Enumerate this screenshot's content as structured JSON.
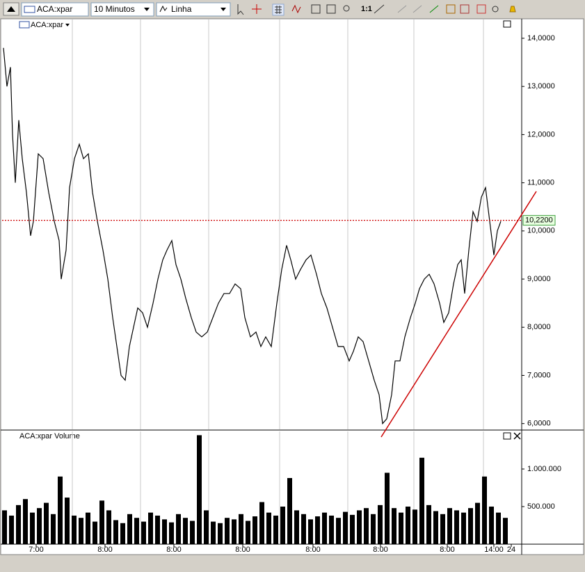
{
  "toolbar": {
    "symbol": "ACA:xpar",
    "interval": "10 Minutos",
    "style": "Linha"
  },
  "chart_data": [
    {
      "type": "line",
      "title": "ACA:xpar",
      "color": "#000000",
      "x": [
        2,
        7,
        12,
        15,
        19,
        24,
        29,
        35,
        41,
        45,
        52,
        59,
        67,
        75,
        82,
        85,
        92,
        97,
        104,
        111,
        117,
        124,
        130,
        137,
        145,
        152,
        159,
        165,
        171,
        177,
        183,
        189,
        195,
        202,
        209,
        217,
        224,
        231,
        237,
        244,
        250,
        257,
        264,
        272,
        279,
        287,
        295,
        303,
        311,
        319,
        327,
        335,
        343,
        349,
        357,
        365,
        372,
        379,
        387,
        395,
        402,
        409,
        415,
        422,
        429,
        437,
        444,
        452,
        459,
        467,
        475,
        483,
        491,
        499,
        505,
        512,
        519,
        527,
        535,
        542,
        547,
        553,
        560,
        565,
        572,
        579,
        587,
        594,
        600,
        607,
        614,
        621,
        629,
        635,
        642,
        649,
        655,
        660,
        665,
        671,
        677,
        683,
        689,
        695,
        701,
        707,
        712,
        717
      ],
      "values": [
        13.8,
        13.0,
        13.4,
        12.0,
        11.0,
        12.3,
        11.5,
        10.8,
        9.9,
        10.2,
        11.6,
        11.5,
        10.8,
        10.2,
        9.8,
        9.0,
        9.6,
        10.9,
        11.5,
        11.8,
        11.5,
        11.6,
        10.8,
        10.2,
        9.6,
        9.0,
        8.2,
        7.6,
        7.0,
        6.9,
        7.6,
        8.0,
        8.4,
        8.3,
        8.0,
        8.5,
        9.0,
        9.4,
        9.6,
        9.8,
        9.3,
        9.0,
        8.6,
        8.2,
        7.9,
        7.8,
        7.9,
        8.2,
        8.5,
        8.7,
        8.7,
        8.9,
        8.8,
        8.2,
        7.8,
        7.9,
        7.6,
        7.8,
        7.6,
        8.5,
        9.2,
        9.7,
        9.4,
        9.0,
        9.2,
        9.4,
        9.5,
        9.1,
        8.7,
        8.4,
        8.0,
        7.6,
        7.6,
        7.3,
        7.5,
        7.8,
        7.7,
        7.3,
        6.9,
        6.6,
        6.0,
        6.1,
        6.6,
        7.3,
        7.3,
        7.8,
        8.2,
        8.5,
        8.8,
        9.0,
        9.1,
        8.9,
        8.5,
        8.1,
        8.3,
        8.9,
        9.3,
        9.4,
        8.7,
        9.6,
        10.4,
        10.2,
        10.7,
        10.9,
        10.2,
        9.5,
        10.0,
        10.2
      ],
      "last_value": {
        "value": 10.22,
        "label": "10,2200"
      },
      "last_color": "#cc0000",
      "xlim": [
        0,
        747
      ],
      "xgrid": [
        101,
        199,
        297,
        399,
        497,
        592,
        692
      ],
      "ylim": [
        5.88,
        14.39
      ],
      "yticks": [
        {
          "value": 6,
          "label": "6,0000"
        },
        {
          "value": 7,
          "label": "7,0000"
        },
        {
          "value": 8,
          "label": "8,0000"
        },
        {
          "value": 9,
          "label": "9,0000"
        },
        {
          "value": 10,
          "label": "10,0000"
        },
        {
          "value": 11,
          "label": "11,0000"
        },
        {
          "value": 12,
          "label": "12,0000"
        },
        {
          "value": 13,
          "label": "13,0000"
        },
        {
          "value": 14,
          "label": "14,0000"
        }
      ]
    },
    {
      "type": "bar",
      "title": "ACA:xpar Volume",
      "color": "#000000",
      "x": [
        0,
        10,
        20,
        30,
        40,
        50,
        60,
        70,
        80,
        90,
        100,
        110,
        120,
        130,
        140,
        150,
        160,
        170,
        180,
        190,
        200,
        210,
        220,
        230,
        240,
        250,
        260,
        270,
        280,
        290,
        300,
        310,
        320,
        330,
        340,
        350,
        360,
        370,
        380,
        390,
        400,
        410,
        420,
        430,
        440,
        450,
        460,
        470,
        480,
        490,
        500,
        510,
        520,
        530,
        540,
        550,
        560,
        570,
        580,
        590,
        600,
        610,
        620,
        630,
        640,
        650,
        660,
        670,
        680,
        690,
        700,
        710,
        720
      ],
      "values": [
        450000,
        380000,
        520000,
        600000,
        420000,
        480000,
        550000,
        400000,
        900000,
        620000,
        380000,
        350000,
        420000,
        300000,
        580000,
        450000,
        320000,
        280000,
        400000,
        350000,
        300000,
        420000,
        380000,
        330000,
        290000,
        400000,
        350000,
        310000,
        1450000,
        450000,
        300000,
        280000,
        350000,
        330000,
        400000,
        310000,
        370000,
        560000,
        420000,
        380000,
        500000,
        880000,
        450000,
        400000,
        330000,
        370000,
        420000,
        380000,
        350000,
        430000,
        390000,
        450000,
        480000,
        400000,
        520000,
        950000,
        480000,
        420000,
        500000,
        460000,
        1150000,
        520000,
        440000,
        400000,
        480000,
        450000,
        420000,
        480000,
        550000,
        900000,
        500000,
        420000,
        350000
      ],
      "xlim": [
        0,
        747
      ],
      "xgrid": [
        101,
        199,
        297,
        399,
        497,
        592,
        692
      ],
      "xticks": [
        {
          "value": 49,
          "label": "7:00"
        },
        {
          "value": 148,
          "label": "8:00"
        },
        {
          "value": 247,
          "label": "8:00"
        },
        {
          "value": 346,
          "label": "8:00"
        },
        {
          "value": 447,
          "label": "8:00"
        },
        {
          "value": 544,
          "label": "8:00"
        },
        {
          "value": 640,
          "label": "8:00"
        },
        {
          "value": 707,
          "label": "14:00"
        },
        {
          "value": 732,
          "label": "24"
        }
      ],
      "ylim": [
        0,
        1500000
      ],
      "yticks": [
        {
          "value": 500000,
          "label": "500.000"
        },
        {
          "value": 1000000,
          "label": "1.000.000"
        }
      ]
    }
  ]
}
